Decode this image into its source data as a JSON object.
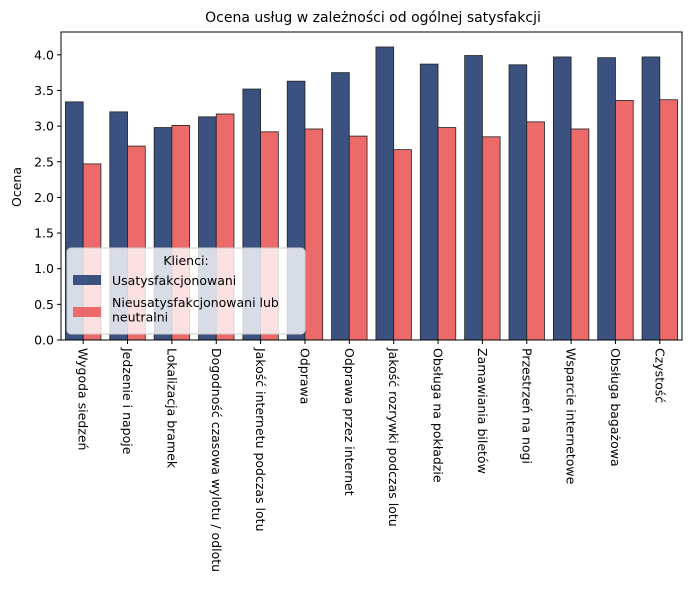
{
  "chart_data": {
    "type": "bar",
    "title": "Ocena usług w zależności od ogólnej satysfakcji",
    "xlabel": "",
    "ylabel": "Ocena",
    "ylim": [
      0,
      4.32
    ],
    "yticks": [
      "0.0",
      "0.5",
      "1.0",
      "1.5",
      "2.0",
      "2.5",
      "3.0",
      "3.5",
      "4.0"
    ],
    "grid": false,
    "legend": {
      "title": "Klienci:",
      "placement": "lower-left"
    },
    "categories": [
      "Wygoda siedzeń",
      "Jedzenie i napoje",
      "Lokalizacja bramek",
      "Dogodność czasowa wylotu / odlotu",
      "Jakość internetu podczas lotu",
      "Odprawa",
      "Odprawa przez internet",
      "Jakość rozrywki podczas lotu",
      "Obsługa na pokładzie",
      "Zamawiania biletów",
      "Przestrzeń na nogi",
      "Wsparcie internetowe",
      "Obsługa bagażowa",
      "Czystość"
    ],
    "series": [
      {
        "name": "Usatysfakcjonowani",
        "color": "#3b5180",
        "values": [
          3.34,
          3.2,
          2.98,
          3.13,
          3.52,
          3.63,
          3.75,
          4.11,
          3.87,
          3.99,
          3.86,
          3.97,
          3.96,
          3.97
        ]
      },
      {
        "name": "Nieusatysfakcjonowani lub neutralni",
        "color": "#ec6a6a",
        "values": [
          2.47,
          2.72,
          3.01,
          3.17,
          2.92,
          2.96,
          2.86,
          2.67,
          2.98,
          2.85,
          3.06,
          2.96,
          3.36,
          3.37
        ]
      }
    ]
  }
}
